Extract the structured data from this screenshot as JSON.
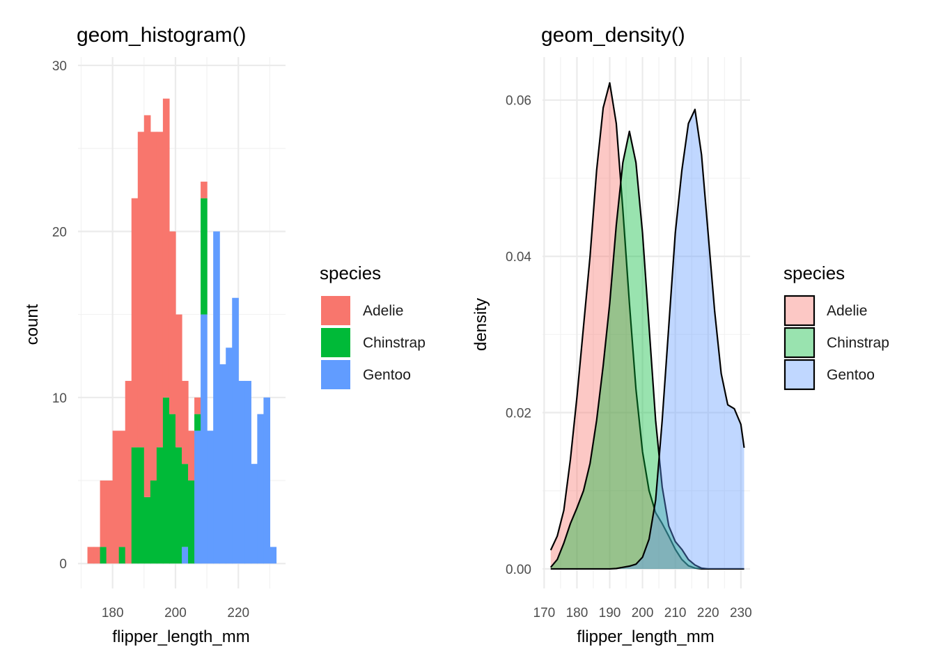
{
  "chart_data": [
    {
      "type": "bar",
      "subtype": "stacked-histogram",
      "title": "geom_histogram()",
      "xlabel": "flipper_length_mm",
      "ylabel": "count",
      "xlim": [
        169,
        235
      ],
      "ylim": [
        -1.5,
        30.5
      ],
      "x_ticks": [
        180,
        200,
        220
      ],
      "y_ticks": [
        0,
        10,
        20,
        30
      ],
      "bin_width": 2,
      "bin_centers": [
        173,
        175,
        177,
        179,
        181,
        183,
        185,
        187,
        189,
        191,
        193,
        195,
        197,
        199,
        201,
        203,
        205,
        207,
        209,
        211,
        213,
        215,
        217,
        219,
        221,
        223,
        225,
        227,
        229,
        231
      ],
      "stack_order": [
        "Gentoo",
        "Chinstrap",
        "Adelie"
      ],
      "series": [
        {
          "name": "Adelie",
          "color": "#F8766D",
          "values": [
            1,
            1,
            4,
            5,
            8,
            7,
            11,
            15,
            19,
            23,
            21,
            19,
            18,
            11,
            8,
            5,
            3,
            1,
            1,
            0,
            0,
            0,
            0,
            0,
            0,
            0,
            0,
            0,
            0,
            0
          ]
        },
        {
          "name": "Chinstrap",
          "color": "#00BA38",
          "values": [
            0,
            0,
            1,
            0,
            0,
            1,
            0,
            7,
            7,
            4,
            5,
            7,
            10,
            9,
            7,
            5,
            5,
            1,
            7,
            0,
            0,
            0,
            0,
            0,
            0,
            0,
            0,
            0,
            0,
            0
          ]
        },
        {
          "name": "Gentoo",
          "color": "#619CFF",
          "values": [
            0,
            0,
            0,
            0,
            0,
            0,
            0,
            0,
            0,
            0,
            0,
            0,
            0,
            0,
            0,
            1,
            0,
            8,
            15,
            8,
            20,
            12,
            13,
            16,
            11,
            11,
            6,
            9,
            10,
            1
          ]
        }
      ],
      "legend": {
        "title": "species",
        "position": "right",
        "entries": [
          "Adelie",
          "Chinstrap",
          "Gentoo"
        ]
      }
    },
    {
      "type": "area",
      "subtype": "density",
      "title": "geom_density()",
      "xlabel": "flipper_length_mm",
      "ylabel": "density",
      "xlim": [
        169.5,
        232.8
      ],
      "ylim": [
        -0.0025,
        0.0655
      ],
      "x_ticks": [
        170,
        180,
        190,
        200,
        210,
        220,
        230
      ],
      "y_ticks": [
        0.0,
        0.02,
        0.04,
        0.06
      ],
      "y_tick_labels": [
        "0.00",
        "0.02",
        "0.04",
        "0.06"
      ],
      "fill_opacity": 0.4,
      "series": [
        {
          "name": "Adelie",
          "color": "#F8766D",
          "x": [
            172,
            174,
            176,
            178,
            180,
            182,
            184,
            186,
            188,
            190,
            192,
            194,
            196,
            198,
            200,
            202,
            204,
            206,
            208,
            210,
            212,
            214,
            216,
            218,
            220,
            222,
            224,
            226,
            228,
            230,
            231
          ],
          "y": [
            0.0024,
            0.0042,
            0.0075,
            0.014,
            0.022,
            0.031,
            0.04,
            0.051,
            0.059,
            0.0622,
            0.057,
            0.046,
            0.034,
            0.023,
            0.015,
            0.01,
            0.0072,
            0.0058,
            0.0042,
            0.0025,
            0.0012,
            0.0004,
            0.0001,
            0,
            0,
            0,
            0,
            0,
            0,
            0,
            0
          ]
        },
        {
          "name": "Chinstrap",
          "color": "#00BA38",
          "x": [
            172,
            174,
            176,
            178,
            180,
            182,
            184,
            186,
            188,
            190,
            192,
            194,
            196,
            198,
            200,
            202,
            204,
            206,
            208,
            210,
            212,
            214,
            216,
            218,
            220,
            222,
            224,
            226,
            228,
            230,
            231
          ],
          "y": [
            0.0002,
            0.0012,
            0.0033,
            0.0058,
            0.0078,
            0.01,
            0.0135,
            0.019,
            0.026,
            0.034,
            0.044,
            0.052,
            0.056,
            0.052,
            0.043,
            0.031,
            0.019,
            0.0105,
            0.0055,
            0.0035,
            0.0025,
            0.0012,
            0.0005,
            0.0001,
            0,
            0,
            0,
            0,
            0,
            0,
            0
          ]
        },
        {
          "name": "Gentoo",
          "color": "#619CFF",
          "x": [
            172,
            174,
            176,
            178,
            180,
            182,
            184,
            186,
            188,
            190,
            192,
            194,
            196,
            198,
            200,
            202,
            204,
            206,
            208,
            210,
            212,
            214,
            216,
            218,
            220,
            222,
            224,
            226,
            228,
            230,
            231
          ],
          "y": [
            0,
            0,
            0,
            0,
            0,
            0,
            0,
            0,
            0,
            0,
            5e-05,
            0.0002,
            0.00035,
            0.0006,
            0.0015,
            0.0038,
            0.0088,
            0.019,
            0.031,
            0.043,
            0.051,
            0.057,
            0.0588,
            0.053,
            0.043,
            0.033,
            0.025,
            0.021,
            0.0205,
            0.0185,
            0.0155
          ]
        }
      ],
      "legend": {
        "title": "species",
        "position": "right",
        "entries": [
          "Adelie",
          "Chinstrap",
          "Gentoo"
        ]
      }
    }
  ]
}
